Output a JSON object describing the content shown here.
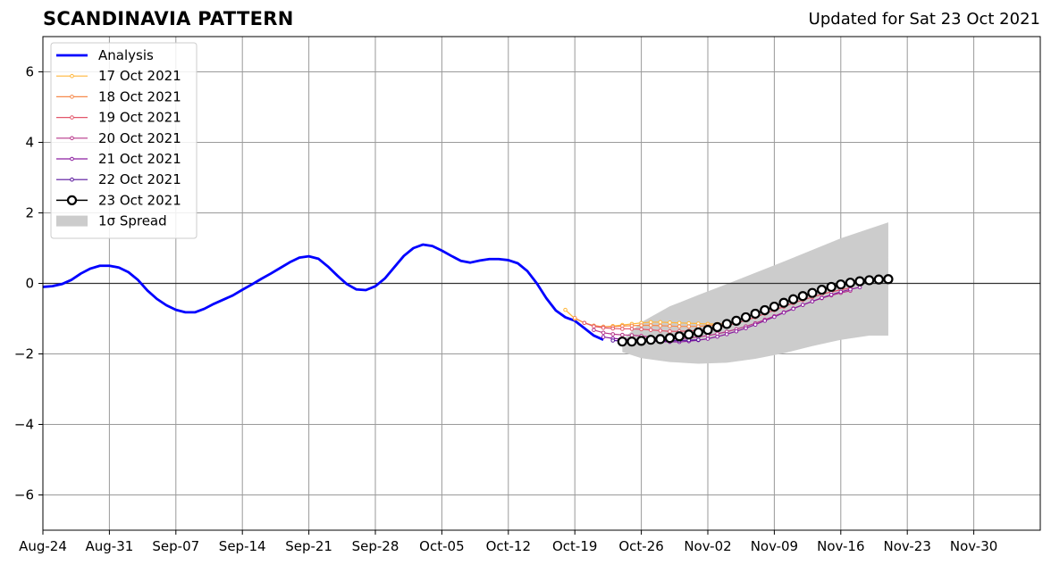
{
  "chart_data": {
    "type": "line",
    "title": "SCANDINAVIA PATTERN",
    "subtitle": "Updated for Sat 23 Oct 2021",
    "xlabel": "",
    "ylabel": "",
    "x_axis": {
      "type": "date",
      "range": [
        "2021-08-24",
        "2021-12-07"
      ],
      "ticks": [
        "Aug-24",
        "Aug-31",
        "Sep-07",
        "Sep-14",
        "Sep-21",
        "Sep-28",
        "Oct-05",
        "Oct-12",
        "Oct-19",
        "Oct-26",
        "Nov-02",
        "Nov-09",
        "Nov-16",
        "Nov-23",
        "Nov-30"
      ],
      "tick_dates": [
        "2021-08-24",
        "2021-08-31",
        "2021-09-07",
        "2021-09-14",
        "2021-09-21",
        "2021-09-28",
        "2021-10-05",
        "2021-10-12",
        "2021-10-19",
        "2021-10-26",
        "2021-11-02",
        "2021-11-09",
        "2021-11-16",
        "2021-11-23",
        "2021-11-30"
      ]
    },
    "y_axis": {
      "range": [
        -7,
        7
      ],
      "ticks": [
        "6",
        "4",
        "2",
        "0",
        "−2",
        "−4",
        "−6"
      ],
      "tick_values": [
        6,
        4,
        2,
        0,
        -2,
        -4,
        -6
      ]
    },
    "grid": true,
    "zero_line": true,
    "legend": {
      "placement": "top-left",
      "entries": [
        "Analysis",
        "17 Oct 2021",
        "18 Oct 2021",
        "19 Oct 2021",
        "20 Oct 2021",
        "21 Oct 2021",
        "22 Oct 2021",
        "23 Oct 2021",
        "1σ Spread"
      ]
    },
    "analysis": {
      "name": "Analysis",
      "color": "#0000ff",
      "x": [
        "2021-08-24",
        "2021-08-25",
        "2021-08-26",
        "2021-08-27",
        "2021-08-28",
        "2021-08-29",
        "2021-08-30",
        "2021-08-31",
        "2021-09-01",
        "2021-09-02",
        "2021-09-03",
        "2021-09-04",
        "2021-09-05",
        "2021-09-06",
        "2021-09-07",
        "2021-09-08",
        "2021-09-09",
        "2021-09-10",
        "2021-09-11",
        "2021-09-12",
        "2021-09-13",
        "2021-09-14",
        "2021-09-15",
        "2021-09-16",
        "2021-09-17",
        "2021-09-18",
        "2021-09-19",
        "2021-09-20",
        "2021-09-21",
        "2021-09-22",
        "2021-09-23",
        "2021-09-24",
        "2021-09-25",
        "2021-09-26",
        "2021-09-27",
        "2021-09-28",
        "2021-09-29",
        "2021-09-30",
        "2021-10-01",
        "2021-10-02",
        "2021-10-03",
        "2021-10-04",
        "2021-10-05",
        "2021-10-06",
        "2021-10-07",
        "2021-10-08",
        "2021-10-09",
        "2021-10-10",
        "2021-10-11",
        "2021-10-12",
        "2021-10-13",
        "2021-10-14",
        "2021-10-15",
        "2021-10-16",
        "2021-10-17",
        "2021-10-18",
        "2021-10-19",
        "2021-10-20",
        "2021-10-21",
        "2021-10-22"
      ],
      "y": [
        -0.1,
        -0.08,
        -0.02,
        0.1,
        0.28,
        0.42,
        0.5,
        0.5,
        0.45,
        0.32,
        0.1,
        -0.2,
        -0.44,
        -0.62,
        -0.75,
        -0.82,
        -0.82,
        -0.72,
        -0.58,
        -0.46,
        -0.34,
        -0.18,
        -0.03,
        0.13,
        0.28,
        0.44,
        0.6,
        0.73,
        0.77,
        0.7,
        0.48,
        0.22,
        -0.02,
        -0.17,
        -0.19,
        -0.08,
        0.14,
        0.46,
        0.78,
        1.0,
        1.1,
        1.06,
        0.93,
        0.78,
        0.64,
        0.59,
        0.65,
        0.69,
        0.69,
        0.66,
        0.57,
        0.35,
        0.0,
        -0.42,
        -0.77,
        -0.96,
        -1.06,
        -1.27,
        -1.48,
        -1.6
      ]
    },
    "forecasts": [
      {
        "name": "17 Oct 2021",
        "color": "#ffb63a",
        "marker": "small-circle",
        "x": [
          "2021-10-18",
          "2021-10-19",
          "2021-10-20",
          "2021-10-21",
          "2021-10-22",
          "2021-10-23",
          "2021-10-24",
          "2021-10-25",
          "2021-10-26",
          "2021-10-27",
          "2021-10-28",
          "2021-10-29",
          "2021-10-30",
          "2021-10-31",
          "2021-11-01",
          "2021-11-02",
          "2021-11-03"
        ],
        "y": [
          -0.75,
          -1.0,
          -1.12,
          -1.2,
          -1.23,
          -1.21,
          -1.18,
          -1.15,
          -1.12,
          -1.1,
          -1.1,
          -1.11,
          -1.12,
          -1.13,
          -1.14,
          -1.15,
          -1.15
        ]
      },
      {
        "name": "18 Oct 2021",
        "color": "#f6894c",
        "marker": "small-circle",
        "x": [
          "2021-10-19",
          "2021-10-20",
          "2021-10-21",
          "2021-10-22",
          "2021-10-23",
          "2021-10-24",
          "2021-10-25",
          "2021-10-26",
          "2021-10-27",
          "2021-10-28",
          "2021-10-29",
          "2021-10-30",
          "2021-10-31",
          "2021-11-01",
          "2021-11-02",
          "2021-11-03",
          "2021-11-04"
        ],
        "y": [
          -0.98,
          -1.12,
          -1.2,
          -1.23,
          -1.23,
          -1.21,
          -1.2,
          -1.19,
          -1.19,
          -1.2,
          -1.21,
          -1.22,
          -1.22,
          -1.22,
          -1.2,
          -1.17,
          -1.12
        ]
      },
      {
        "name": "19 Oct 2021",
        "color": "#e2576b",
        "marker": "small-circle",
        "x": [
          "2021-10-20",
          "2021-10-21",
          "2021-10-22",
          "2021-10-23",
          "2021-10-24",
          "2021-10-25",
          "2021-10-26",
          "2021-10-27",
          "2021-10-28",
          "2021-10-29",
          "2021-10-30",
          "2021-10-31",
          "2021-11-01",
          "2021-11-02",
          "2021-11-03",
          "2021-11-04",
          "2021-11-05",
          "2021-11-06",
          "2021-11-07",
          "2021-11-08",
          "2021-11-09",
          "2021-11-10",
          "2021-11-11",
          "2021-11-12",
          "2021-11-13",
          "2021-11-14",
          "2021-11-15",
          "2021-11-16",
          "2021-11-17"
        ],
        "y": [
          -1.12,
          -1.22,
          -1.26,
          -1.28,
          -1.29,
          -1.29,
          -1.3,
          -1.32,
          -1.34,
          -1.36,
          -1.36,
          -1.35,
          -1.33,
          -1.3,
          -1.26,
          -1.2,
          -1.13,
          -1.05,
          -0.96,
          -0.86,
          -0.76,
          -0.66,
          -0.56,
          -0.47,
          -0.39,
          -0.31,
          -0.24,
          -0.18,
          -0.13
        ]
      },
      {
        "name": "20 Oct 2021",
        "color": "#b7378a",
        "marker": "small-circle",
        "x": [
          "2021-10-21",
          "2021-10-22",
          "2021-10-23",
          "2021-10-24",
          "2021-10-25",
          "2021-10-26",
          "2021-10-27",
          "2021-10-28",
          "2021-10-29",
          "2021-10-30",
          "2021-10-31",
          "2021-11-01",
          "2021-11-02",
          "2021-11-03",
          "2021-11-04",
          "2021-11-05",
          "2021-11-06",
          "2021-11-07",
          "2021-11-08",
          "2021-11-09",
          "2021-11-10",
          "2021-11-11",
          "2021-11-12",
          "2021-11-13",
          "2021-11-14",
          "2021-11-15",
          "2021-11-16",
          "2021-11-17"
        ],
        "y": [
          -1.32,
          -1.4,
          -1.44,
          -1.46,
          -1.47,
          -1.49,
          -1.52,
          -1.55,
          -1.57,
          -1.57,
          -1.55,
          -1.52,
          -1.48,
          -1.43,
          -1.37,
          -1.3,
          -1.22,
          -1.13,
          -1.03,
          -0.93,
          -0.82,
          -0.71,
          -0.61,
          -0.51,
          -0.42,
          -0.34,
          -0.27,
          -0.21
        ]
      },
      {
        "name": "21 Oct 2021",
        "color": "#8c1fa0",
        "marker": "small-circle",
        "x": [
          "2021-10-22",
          "2021-10-23",
          "2021-10-24",
          "2021-10-25",
          "2021-10-26",
          "2021-10-27",
          "2021-10-28",
          "2021-10-29",
          "2021-10-30",
          "2021-10-31",
          "2021-11-01",
          "2021-11-02",
          "2021-11-03",
          "2021-11-04",
          "2021-11-05",
          "2021-11-06",
          "2021-11-07",
          "2021-11-08",
          "2021-11-09",
          "2021-11-10",
          "2021-11-11",
          "2021-11-12",
          "2021-11-13",
          "2021-11-14",
          "2021-11-15",
          "2021-11-16",
          "2021-11-17",
          "2021-11-18"
        ],
        "y": [
          -1.52,
          -1.56,
          -1.58,
          -1.59,
          -1.61,
          -1.63,
          -1.65,
          -1.66,
          -1.66,
          -1.64,
          -1.61,
          -1.57,
          -1.51,
          -1.44,
          -1.36,
          -1.27,
          -1.17,
          -1.06,
          -0.95,
          -0.83,
          -0.72,
          -0.61,
          -0.51,
          -0.41,
          -0.32,
          -0.24,
          -0.17,
          -0.11
        ]
      },
      {
        "name": "22 Oct 2021",
        "color": "#56119b",
        "marker": "small-circle",
        "x": [
          "2021-10-23",
          "2021-10-24",
          "2021-10-25",
          "2021-10-26",
          "2021-10-27",
          "2021-10-28",
          "2021-10-29",
          "2021-10-30",
          "2021-10-31",
          "2021-11-01"
        ],
        "y": [
          -1.62,
          -1.63,
          -1.63,
          -1.63,
          -1.63,
          -1.63,
          -1.63,
          -1.62,
          -1.61,
          -1.6
        ]
      },
      {
        "name": "23 Oct 2021",
        "color": "#000000",
        "marker": "large-open-circle",
        "x": [
          "2021-10-24",
          "2021-10-25",
          "2021-10-26",
          "2021-10-27",
          "2021-10-28",
          "2021-10-29",
          "2021-10-30",
          "2021-10-31",
          "2021-11-01",
          "2021-11-02",
          "2021-11-03",
          "2021-11-04",
          "2021-11-05",
          "2021-11-06",
          "2021-11-07",
          "2021-11-08",
          "2021-11-09",
          "2021-11-10",
          "2021-11-11",
          "2021-11-12",
          "2021-11-13",
          "2021-11-14",
          "2021-11-15",
          "2021-11-16",
          "2021-11-17",
          "2021-11-18",
          "2021-11-19",
          "2021-11-20",
          "2021-11-21"
        ],
        "y": [
          -1.65,
          -1.65,
          -1.63,
          -1.6,
          -1.58,
          -1.55,
          -1.5,
          -1.45,
          -1.39,
          -1.32,
          -1.24,
          -1.15,
          -1.06,
          -0.96,
          -0.86,
          -0.76,
          -0.66,
          -0.55,
          -0.45,
          -0.36,
          -0.27,
          -0.18,
          -0.1,
          -0.03,
          0.02,
          0.06,
          0.09,
          0.11,
          0.12
        ]
      }
    ],
    "spread": {
      "name": "1σ Spread",
      "color": "#cccccc",
      "x": [
        "2021-10-24",
        "2021-10-26",
        "2021-10-29",
        "2021-11-01",
        "2021-11-04",
        "2021-11-07",
        "2021-11-10",
        "2021-11-13",
        "2021-11-16",
        "2021-11-19",
        "2021-11-21"
      ],
      "upper": [
        -1.6,
        -1.1,
        -0.65,
        -0.33,
        -0.02,
        0.3,
        0.62,
        0.95,
        1.28,
        1.55,
        1.73
      ],
      "lower": [
        -1.95,
        -2.12,
        -2.23,
        -2.28,
        -2.25,
        -2.14,
        -1.98,
        -1.78,
        -1.6,
        -1.48,
        -1.48
      ]
    }
  }
}
